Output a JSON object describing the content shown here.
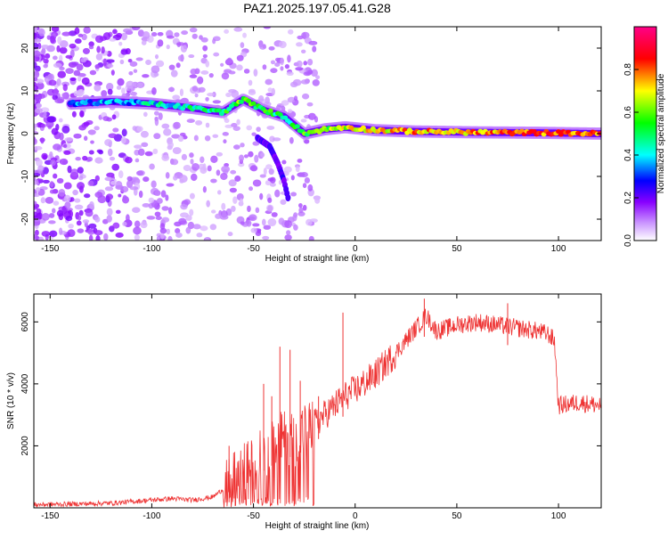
{
  "page_title": "PAZ1.2025.197.05.41.G28",
  "chart_data": [
    {
      "type": "heatmap",
      "xlabel": "Height of straight line (km)",
      "ylabel": "Frequency (Hz)",
      "xlim": [
        -158,
        121
      ],
      "ylim": [
        -25,
        25
      ],
      "x_ticks": [
        -150,
        -100,
        -50,
        0,
        50,
        100
      ],
      "y_ticks": [
        -20,
        -10,
        0,
        10,
        20
      ],
      "colorbar": {
        "label": "Normalized spectral amplitude",
        "range": [
          0,
          1
        ],
        "ticks": [
          0.0,
          0.2,
          0.4,
          0.6,
          0.8
        ],
        "colors": [
          "#ffffff",
          "#8800ff",
          "#0000ff",
          "#00ffff",
          "#00ff00",
          "#ffff00",
          "#ff0000",
          "#ff0080"
        ]
      },
      "ridge": {
        "x": [
          -140,
          -120,
          -100,
          -80,
          -65,
          -55,
          -45,
          -35,
          -25,
          -15,
          -5,
          10,
          30,
          60,
          90,
          120
        ],
        "y": [
          7,
          7.5,
          7,
          6,
          5,
          8,
          5.5,
          4,
          0,
          1,
          1.5,
          0.8,
          0.5,
          0.3,
          0.2,
          0
        ],
        "amplitude": [
          0.3,
          0.35,
          0.4,
          0.45,
          0.5,
          0.6,
          0.55,
          0.45,
          0.55,
          0.6,
          0.65,
          0.7,
          0.75,
          0.75,
          0.8,
          0.8
        ]
      },
      "secondary_branch": {
        "x": [
          -48,
          -42,
          -38,
          -35,
          -33
        ],
        "y": [
          -1,
          -3,
          -7,
          -11,
          -15
        ]
      }
    },
    {
      "type": "line",
      "xlabel": "Height of straight line (km)",
      "ylabel": "SNR (10 * v/v)",
      "xlim": [
        -158,
        121
      ],
      "ylim": [
        0,
        6900
      ],
      "x_ticks": [
        -150,
        -100,
        -50,
        0,
        50,
        100
      ],
      "y_ticks": [
        2000,
        4000,
        6000
      ],
      "color": "#ee3333",
      "x": [
        -158,
        -140,
        -120,
        -110,
        -100,
        -90,
        -80,
        -70,
        -65,
        -60,
        -55,
        -50,
        -45,
        -40,
        -35,
        -30,
        -25,
        -20,
        -15,
        -10,
        -5,
        0,
        10,
        20,
        30,
        35,
        40,
        50,
        60,
        70,
        80,
        90,
        95,
        98,
        100,
        110,
        121
      ],
      "values": [
        100,
        120,
        150,
        200,
        250,
        300,
        250,
        350,
        600,
        900,
        1200,
        1400,
        1800,
        2000,
        2300,
        2200,
        2500,
        2700,
        3000,
        3300,
        3600,
        3800,
        4300,
        5000,
        5800,
        6200,
        5700,
        5900,
        6000,
        5900,
        5800,
        5700,
        5600,
        5400,
        3300,
        3400,
        3300
      ],
      "spikes": [
        {
          "x": -62,
          "y": 2000
        },
        {
          "x": -45,
          "y": 4000
        },
        {
          "x": -41,
          "y": 3600
        },
        {
          "x": -37,
          "y": 5200
        },
        {
          "x": -32,
          "y": 5100
        },
        {
          "x": -27,
          "y": 4100
        },
        {
          "x": -18,
          "y": 3600
        },
        {
          "x": -6,
          "y": 6300
        },
        {
          "x": 34,
          "y": 6750
        },
        {
          "x": 75,
          "y": 6600
        }
      ]
    }
  ]
}
